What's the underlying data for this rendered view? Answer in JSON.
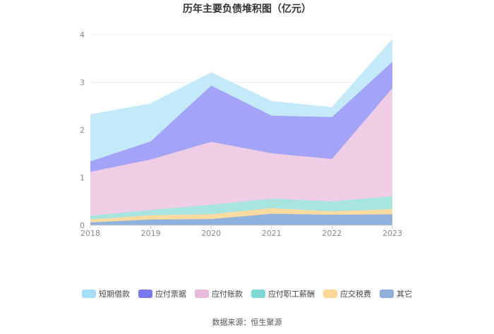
{
  "chart_data": {
    "type": "area",
    "stacked": true,
    "title": "历年主要负债堆积图（亿元）",
    "categories": [
      "2018",
      "2019",
      "2020",
      "2021",
      "2022",
      "2023"
    ],
    "ylim": [
      0,
      4
    ],
    "yticks": [
      "0",
      "1",
      "2",
      "3",
      "4"
    ],
    "grid": true,
    "legend_position": "bottom",
    "series": [
      {
        "name": "其它",
        "color": "#8eb2dd",
        "values": [
          0.06,
          0.12,
          0.13,
          0.24,
          0.22,
          0.23
        ]
      },
      {
        "name": "应交税费",
        "color": "#fcdba0",
        "values": [
          0.06,
          0.09,
          0.1,
          0.12,
          0.07,
          0.11
        ]
      },
      {
        "name": "应付职工薪酬",
        "color": "#a8e4e0",
        "values": [
          0.08,
          0.11,
          0.2,
          0.2,
          0.21,
          0.27
        ]
      },
      {
        "name": "应付账款",
        "color": "#efcde4",
        "values": [
          0.92,
          1.06,
          1.32,
          0.95,
          0.89,
          2.27
        ]
      },
      {
        "name": "应付票据",
        "color": "#a3a3f7",
        "values": [
          0.22,
          0.38,
          1.18,
          0.79,
          0.88,
          0.55
        ]
      },
      {
        "name": "短期借款",
        "color": "#c4eafa",
        "values": [
          0.98,
          0.79,
          0.27,
          0.3,
          0.2,
          0.47
        ]
      }
    ],
    "legend_order": [
      "短期借款",
      "应付票据",
      "应付账款",
      "应付职工薪酬",
      "应交税费",
      "其它"
    ],
    "legend_colors": {
      "短期借款": "#a6dff9",
      "应付票据": "#7a78ef",
      "应付账款": "#e9b9dc",
      "应付职工薪酬": "#80d9d2",
      "应交税费": "#fbd697",
      "其它": "#8eb0dc"
    },
    "source": "数据来源：恒生聚源"
  },
  "colors": {
    "axis": "#cccccc",
    "grid": "#eeeeee"
  }
}
